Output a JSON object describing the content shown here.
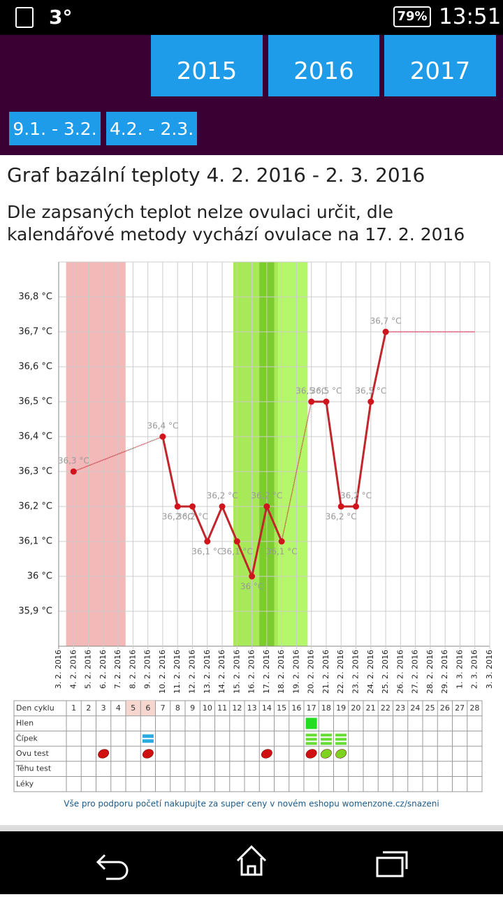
{
  "status_bar": {
    "temperature": "3°",
    "battery": "79%",
    "time": "13:51"
  },
  "years": [
    "2015",
    "2016",
    "2017"
  ],
  "cycles": [
    "9.1. - 3.2.",
    "4.2. - 2.3."
  ],
  "title": "Graf bazální teploty 4. 2. 2016 - 2. 3. 2016",
  "subtitle": [
    "Dle zapsaných teplot nelze ovulaci určit, dle",
    "kalendářové metody vychází ovulace na 17. 2. 2016"
  ],
  "chart_data": {
    "type": "line",
    "categories": [
      "3. 2. 2016",
      "4. 2. 2016",
      "5. 2. 2016",
      "6. 2. 2016",
      "7. 2. 2016",
      "8. 2. 2016",
      "9. 2. 2016",
      "10. 2. 2016",
      "11. 2. 2016",
      "12. 2. 2016",
      "13. 2. 2016",
      "14. 2. 2016",
      "15. 2. 2016",
      "16. 2. 2016",
      "17. 2. 2016",
      "18. 2. 2016",
      "19. 2. 2016",
      "20. 2. 2016",
      "21. 2. 2016",
      "22. 2. 2016",
      "23. 2. 2016",
      "24. 2. 2016",
      "25. 2. 2016",
      "26. 2. 2016",
      "27. 2. 2016",
      "28. 2. 2016",
      "29. 2. 2016",
      "1. 3. 2016",
      "2. 3. 2016",
      "3. 3. 2016"
    ],
    "series": [
      {
        "color": "#c0272d",
        "values": [
          null,
          36.3,
          null,
          null,
          null,
          null,
          null,
          36.4,
          36.2,
          36.2,
          36.1,
          36.2,
          36.1,
          36.0,
          36.2,
          36.1,
          null,
          36.5,
          36.5,
          36.2,
          36.2,
          36.5,
          36.7,
          null,
          null,
          null,
          null,
          null,
          null,
          null
        ],
        "value_labels": [
          null,
          "36,3 °C",
          null,
          null,
          null,
          null,
          null,
          "36,4 °C",
          "36,2 °C",
          "36,2 °C",
          "36,1 °C",
          "36,2 °C",
          "36,1 °C",
          "36 °C",
          "36,2 °C",
          "36,1 °C",
          null,
          "36,5 °C",
          "36,5 °C",
          "36,2 °C",
          "36,2 °C",
          "36,5 °C",
          "36,7 °C",
          null,
          null,
          null,
          null,
          null,
          null,
          null
        ]
      }
    ],
    "ylim": [
      35.8,
      36.9
    ],
    "yticks": [
      {
        "value": 35.9,
        "label": "35,9 °C"
      },
      {
        "value": 36.0,
        "label": "36 °C"
      },
      {
        "value": 36.1,
        "label": "36,1 °C"
      },
      {
        "value": 36.2,
        "label": "36,2 °C"
      },
      {
        "value": 36.3,
        "label": "36,3 °C"
      },
      {
        "value": 36.4,
        "label": "36,4 °C"
      },
      {
        "value": 36.5,
        "label": "36,5 °C"
      },
      {
        "value": 36.6,
        "label": "36,6 °C"
      },
      {
        "value": 36.7,
        "label": "36,7 °C"
      },
      {
        "value": 36.8,
        "label": "36,8 °C"
      }
    ],
    "grid": true
  },
  "table": {
    "header": "Den cyklu",
    "days": [
      "1",
      "2",
      "3",
      "4",
      "5",
      "6",
      "7",
      "8",
      "9",
      "10",
      "11",
      "12",
      "13",
      "14",
      "15",
      "16",
      "17",
      "18",
      "19",
      "20",
      "21",
      "22",
      "23",
      "24",
      "25",
      "26",
      "27",
      "28"
    ],
    "rows": [
      "Hlen",
      "Čípek",
      "Ovu test",
      "Těhu test",
      "Léky"
    ]
  },
  "footer": "Vše pro podporu početí nakupujte za super ceny v novém eshopu womenzone.cz/snazeni"
}
